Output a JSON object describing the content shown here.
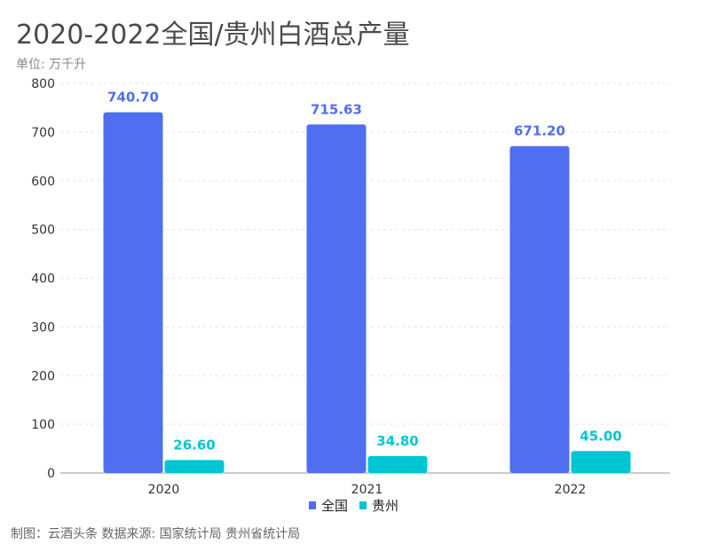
{
  "chart_data": {
    "type": "bar",
    "title": "2020-2022全国/贵州白酒总产量",
    "subtitle": "单位: 万千升",
    "categories": [
      "2020",
      "2021",
      "2022"
    ],
    "series": [
      {
        "name": "全国",
        "values": [
          740.7,
          715.63,
          671.2
        ],
        "labels": [
          "740.70",
          "715.63",
          "671.20"
        ],
        "color": "#4F6EF0"
      },
      {
        "name": "贵州",
        "values": [
          26.6,
          34.8,
          45.0
        ],
        "labels": [
          "26.60",
          "34.80",
          "45.00"
        ],
        "color": "#00C5D4"
      }
    ],
    "ylim": [
      0,
      800
    ],
    "yticks": [
      "0",
      "100",
      "200",
      "300",
      "400",
      "500",
      "600",
      "700",
      "800"
    ],
    "grid": true,
    "legend": "bottom",
    "source": "制图：云酒头条 数据来源: 国家统计局 贵州省统计局"
  }
}
